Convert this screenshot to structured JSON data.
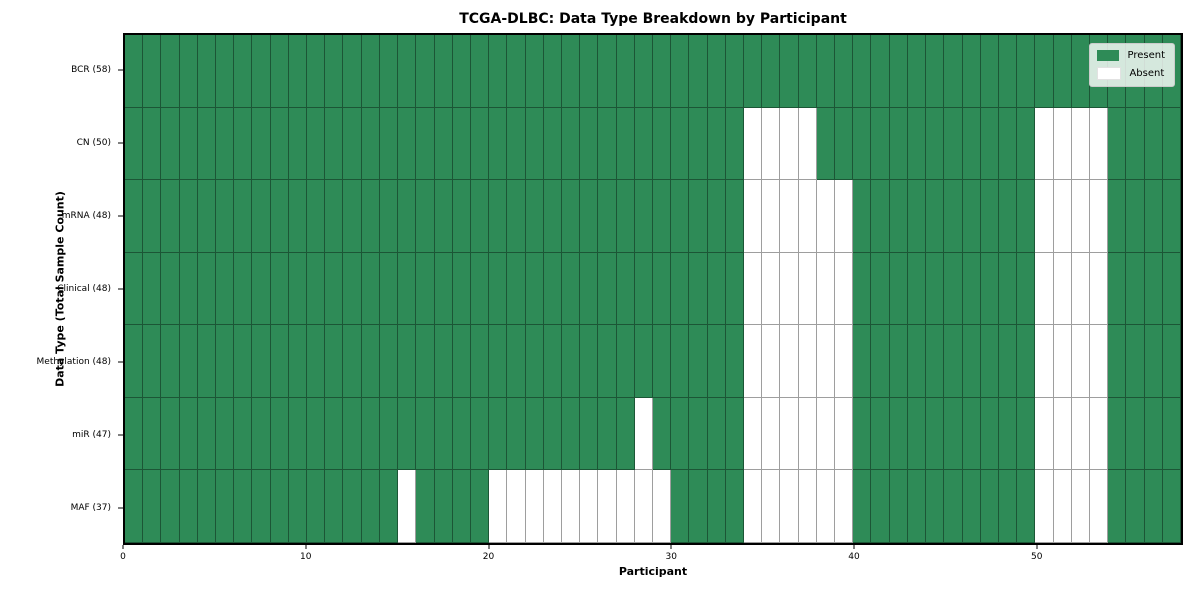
{
  "chart_data": {
    "type": "heatmap",
    "title": "TCGA-DLBC: Data Type Breakdown by Participant",
    "xlabel": "Participant",
    "ylabel": "Data Type (Total Sample Count)",
    "x_ticks": [
      0,
      10,
      20,
      30,
      40,
      50
    ],
    "x_range": [
      0,
      58
    ],
    "n_participants": 58,
    "grid": "on",
    "legend": {
      "position": "upper right",
      "entries": [
        {
          "id": "present",
          "label": "Present",
          "color": "#2e8b57"
        },
        {
          "id": "absent",
          "label": "Absent",
          "color": "#ffffff"
        }
      ]
    },
    "colors": {
      "present": "#2e8b57",
      "absent": "#ffffff",
      "grid_line": "rgba(0,0,0,0.38)",
      "spine": "#000000"
    },
    "rows": [
      {
        "label": "BCR (58)",
        "data_type": "BCR",
        "present_count": 58,
        "absent_participants": []
      },
      {
        "label": "CN (50)",
        "data_type": "CN",
        "present_count": 50,
        "absent_participants": [
          34,
          35,
          36,
          37,
          50,
          51,
          52,
          53
        ]
      },
      {
        "label": "mRNA (48)",
        "data_type": "mRNA",
        "present_count": 48,
        "absent_participants": [
          34,
          35,
          36,
          37,
          38,
          39,
          50,
          51,
          52,
          53
        ]
      },
      {
        "label": "Clinical (48)",
        "data_type": "Clinical",
        "present_count": 48,
        "absent_participants": [
          34,
          35,
          36,
          37,
          38,
          39,
          50,
          51,
          52,
          53
        ]
      },
      {
        "label": "Methylation (48)",
        "data_type": "Methylation",
        "present_count": 48,
        "absent_participants": [
          34,
          35,
          36,
          37,
          38,
          39,
          50,
          51,
          52,
          53
        ]
      },
      {
        "label": "miR (47)",
        "data_type": "miR",
        "present_count": 47,
        "absent_participants": [
          28,
          34,
          35,
          36,
          37,
          38,
          39,
          50,
          51,
          52,
          53
        ]
      },
      {
        "label": "MAF (37)",
        "data_type": "MAF",
        "present_count": 37,
        "absent_participants": [
          15,
          20,
          21,
          22,
          23,
          24,
          25,
          26,
          27,
          28,
          29,
          34,
          35,
          36,
          37,
          38,
          39,
          50,
          51,
          52,
          53
        ]
      }
    ]
  }
}
